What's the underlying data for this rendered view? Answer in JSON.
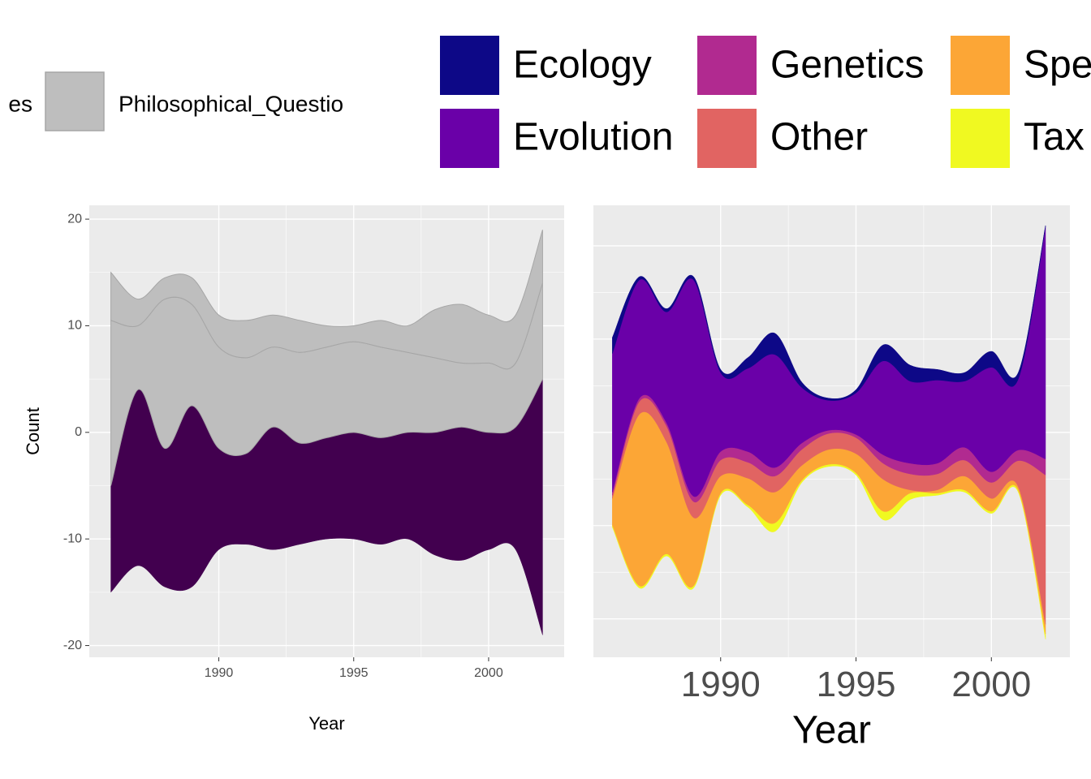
{
  "chart_data": [
    {
      "type": "stream",
      "x": [
        1986,
        1987,
        1988,
        1989,
        1990,
        1991,
        1992,
        1993,
        1994,
        1995,
        1996,
        1997,
        1998,
        1999,
        2000,
        2001,
        2002
      ],
      "xlim": [
        1985.2,
        2002.8
      ],
      "xticks": [
        1990,
        1995,
        2000
      ],
      "ylim": [
        -21.1,
        21.3
      ],
      "yticks": [
        -20,
        -10,
        0,
        10,
        20
      ],
      "xlabel": "Year",
      "ylabel": "Count",
      "grid": true,
      "series": [
        {
          "color": "#42004f",
          "values": [
            10,
            16.5,
            13,
            17,
            9.5,
            8.5,
            11.5,
            9.5,
            9.5,
            10,
            10,
            10,
            11.5,
            12.5,
            11,
            11.5,
            24
          ]
        },
        {
          "name": "es",
          "color": "#bebebe",
          "values": [
            15.5,
            6,
            14,
            9.5,
            9.5,
            9,
            7.5,
            8.5,
            8.5,
            8.5,
            8.5,
            7.5,
            7,
            6,
            6.5,
            6,
            9
          ]
        },
        {
          "name": "Philosophical_Questio",
          "color": "#bebebe",
          "values": [
            4.5,
            2.5,
            2,
            2.5,
            3,
            3.5,
            3,
            3,
            2,
            1.5,
            2.5,
            2.5,
            4.5,
            5.5,
            4.5,
            4.5,
            5
          ]
        }
      ]
    },
    {
      "type": "stream",
      "x": [
        1986,
        1987,
        1988,
        1989,
        1990,
        1991,
        1992,
        1993,
        1994,
        1995,
        1996,
        1997,
        1998,
        1999,
        2000,
        2001,
        2002
      ],
      "xlim": [
        1985.3,
        2002.9
      ],
      "xticks": [
        1990,
        1995,
        2000
      ],
      "ylim": [
        -21.1,
        21.3
      ],
      "yticks": [
        -17.5,
        -8.75,
        0,
        8.75,
        17.5
      ],
      "xlabel": "Year",
      "grid": true,
      "series": [
        {
          "name": "Tax",
          "color": "#f0f921",
          "values": [
            0.2,
            0.2,
            0.2,
            0.2,
            0.2,
            0.2,
            0.8,
            0.2,
            0.2,
            0.2,
            0.8,
            0.6,
            0.2,
            0.2,
            0.2,
            0.2,
            0.5
          ]
        },
        {
          "name": "Spe",
          "color": "#fca636",
          "values": [
            2.5,
            16.1,
            10.5,
            6.4,
            1.6,
            2.5,
            2.9,
            1.4,
            1.4,
            1.8,
            3.0,
            0.3,
            0.3,
            1.3,
            1.2,
            0.3,
            0.9
          ]
        },
        {
          "name": "Other",
          "color": "#e16462",
          "values": [
            0.3,
            1.2,
            1.5,
            1.5,
            1.5,
            1.5,
            1.5,
            1.5,
            1.5,
            1.5,
            1.5,
            1.5,
            1.5,
            1.5,
            1.5,
            2.5,
            14
          ]
        },
        {
          "name": "Genetics",
          "color": "#b12a90",
          "values": [
            0.3,
            0.3,
            0.3,
            0.5,
            0.8,
            1.0,
            0.8,
            0.6,
            0.3,
            0.3,
            0.8,
            1,
            1,
            1.2,
            1,
            1,
            1.5
          ]
        },
        {
          "name": "Evolution",
          "color": "#6a00a8",
          "values": [
            13,
            11.1,
            10.4,
            20.3,
            7.4,
            7.8,
            10.6,
            5.2,
            2.8,
            3.9,
            8.8,
            7.7,
            7.8,
            6.2,
            9.8,
            6.7,
            21.8
          ]
        },
        {
          "name": "Ecology",
          "color": "#0d0887",
          "values": [
            1.5,
            0.3,
            0.3,
            0.3,
            0.3,
            1,
            2,
            0.5,
            0.2,
            0.3,
            1.5,
            1.5,
            1,
            0.8,
            1.5,
            0.6,
            0.1
          ]
        }
      ]
    }
  ]
}
